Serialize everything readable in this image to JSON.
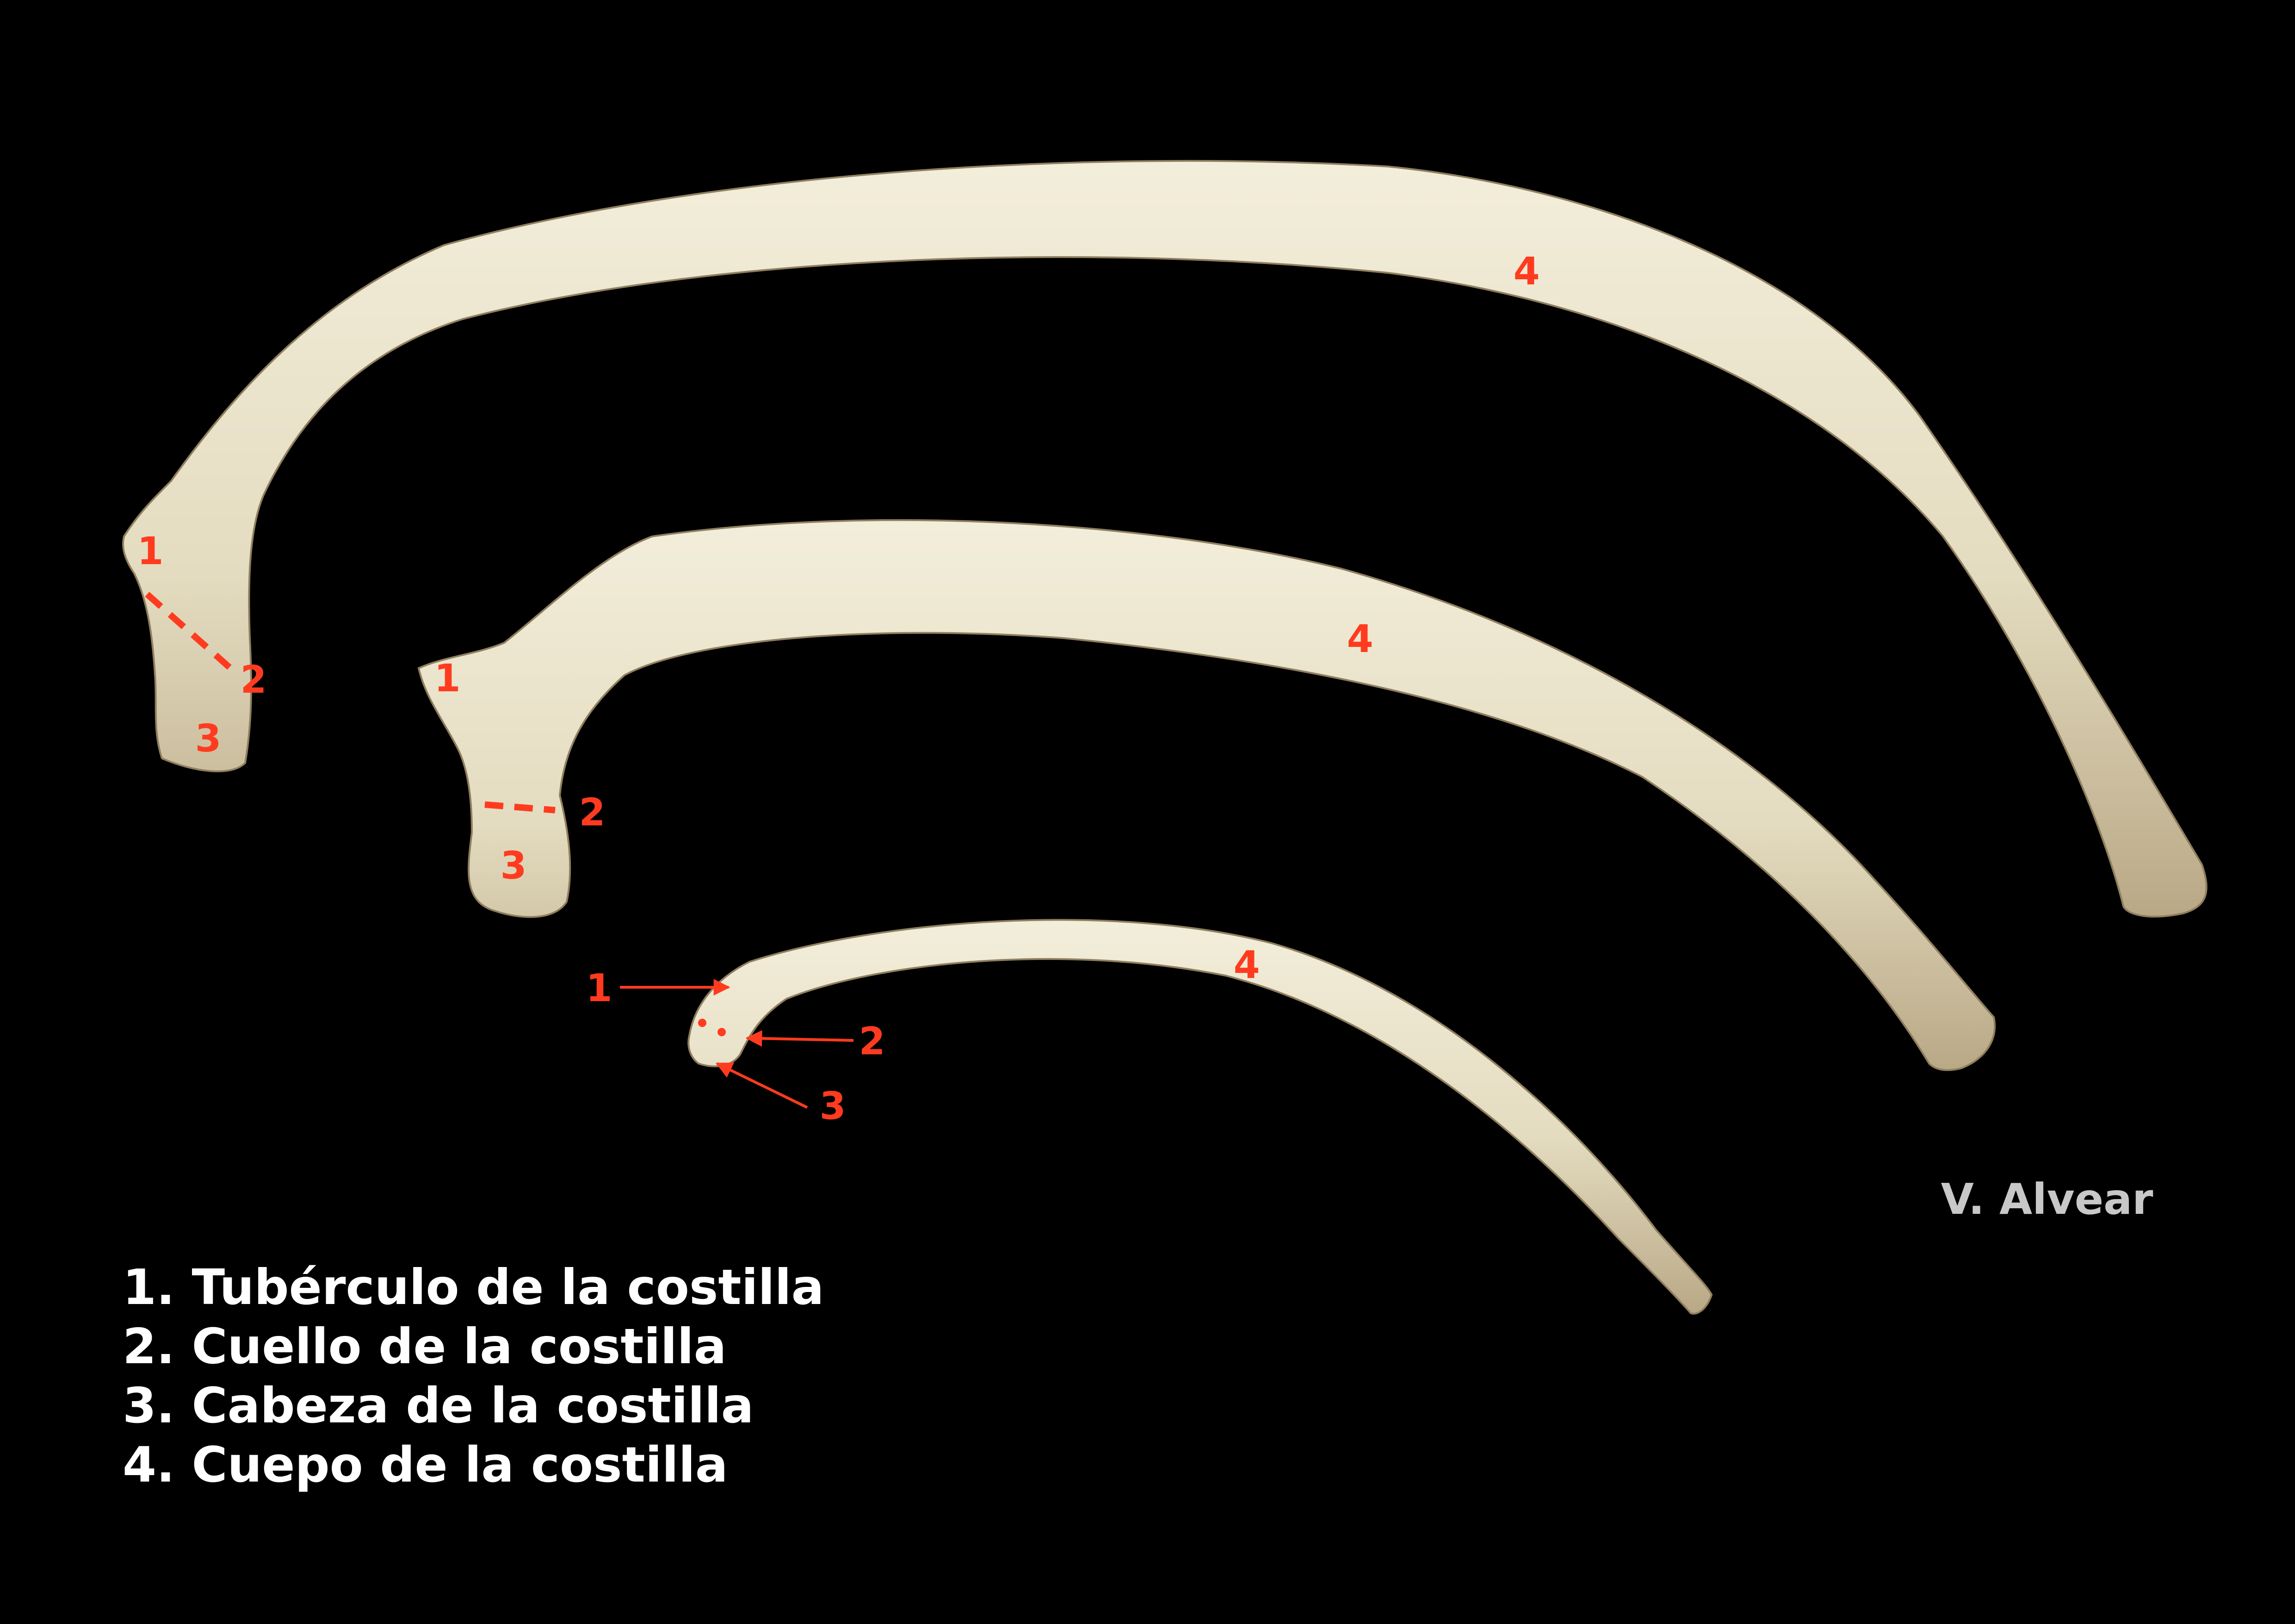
{
  "colors": {
    "background": "#000000",
    "bone_fill": "#e4dcc0",
    "bone_shadow": "#b9a886",
    "bone_highlight": "#f3eedb",
    "annotation": "#ff3b1f",
    "legend_text": "#ffffff",
    "credit_text": "#c8c8c8"
  },
  "markers": {
    "rib_large": {
      "tubercle": "1",
      "neck": "2",
      "head": "3",
      "body": "4"
    },
    "rib_middle": {
      "tubercle": "1",
      "neck": "2",
      "head": "3",
      "body": "4"
    },
    "rib_small": {
      "tubercle": "1",
      "neck": "2",
      "head": "3",
      "body": "4"
    }
  },
  "legend": {
    "items": [
      "1. Tubérculo de la costilla",
      "2. Cuello de la costilla",
      "3. Cabeza de la costilla",
      "4. Cuepo de la costilla"
    ]
  },
  "credit": "V. Alvear"
}
